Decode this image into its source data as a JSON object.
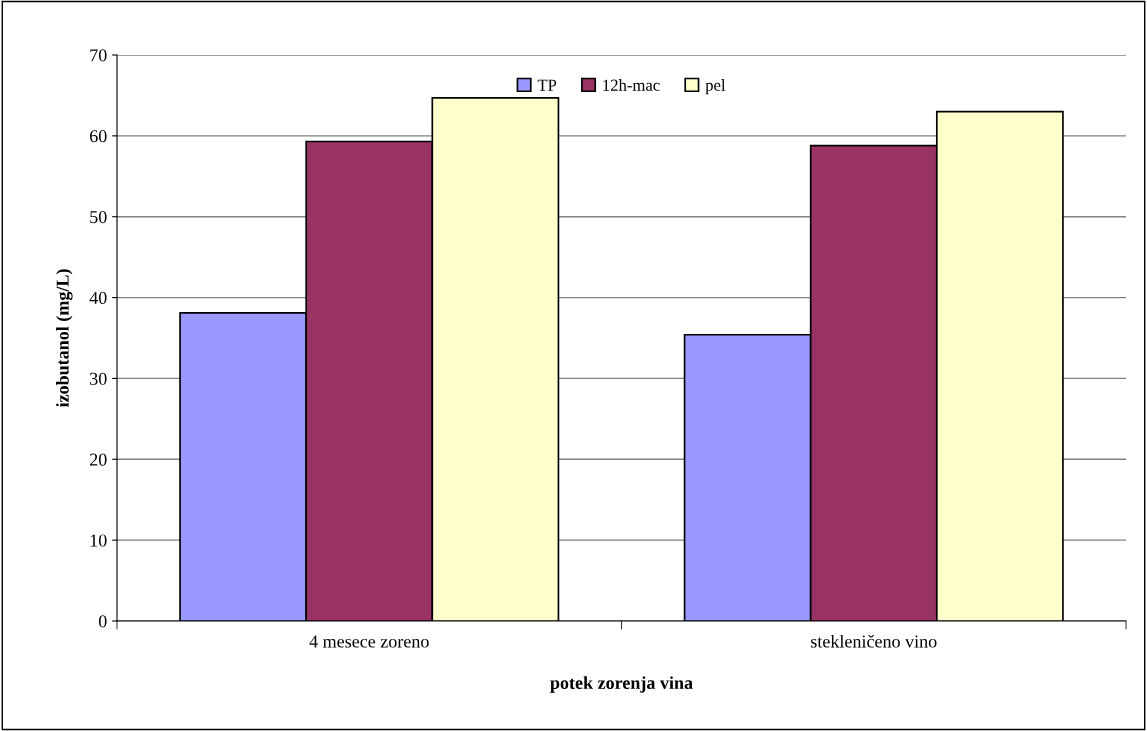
{
  "chart_data": {
    "type": "bar",
    "xlabel": "potek zorenja vina",
    "ylabel": "izobutanol (mg/L)",
    "categories": [
      "4 mesece zoreno",
      "stekleničeno vino"
    ],
    "series": [
      {
        "name": "TP",
        "color": "#9999ff",
        "values": [
          38.1,
          35.4
        ]
      },
      {
        "name": "12h-mac",
        "color": "#993366",
        "values": [
          59.3,
          58.8
        ]
      },
      {
        "name": "pel",
        "color": "#ffffcc",
        "values": [
          64.7,
          63.0
        ]
      }
    ],
    "ylim": [
      0,
      70
    ],
    "yticks": [
      0,
      10,
      20,
      30,
      40,
      50,
      60,
      70
    ],
    "grid": "y",
    "legend": "top"
  }
}
